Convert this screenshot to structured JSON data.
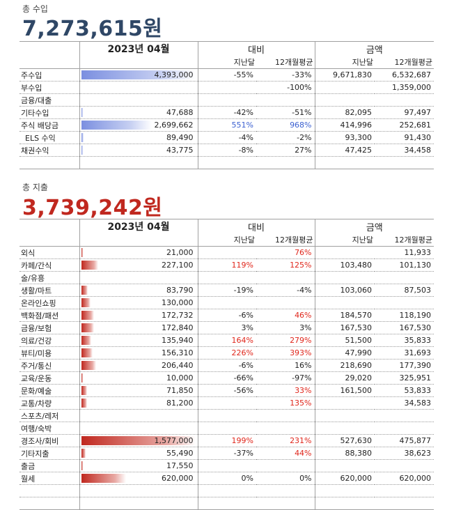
{
  "income": {
    "label": "총 수입",
    "total": "7,273,615원",
    "bar_color": "#7b8fe0",
    "header": {
      "period": "2023년 04월",
      "compare": "대비",
      "amount": "금액",
      "prev_month": "지난달",
      "avg12": "12개월평균",
      "prev_month2": "지난달",
      "avg12_2": "12개월평균"
    },
    "rows": [
      {
        "cat": "주수입",
        "value": "4,393,000",
        "bar": 1.0,
        "cmp_prev": "-55%",
        "cmp_avg": "-33%",
        "amt_prev": "9,671,830",
        "amt_avg": "6,532,687",
        "cmp_prev_color": "",
        "cmp_avg_color": ""
      },
      {
        "cat": "부수입",
        "value": "",
        "bar": 0,
        "cmp_prev": "",
        "cmp_avg": "-100%",
        "amt_prev": "",
        "amt_avg": "1,359,000",
        "cmp_prev_color": "",
        "cmp_avg_color": ""
      },
      {
        "cat": "금융/대출",
        "value": "",
        "bar": 0,
        "cmp_prev": "",
        "cmp_avg": "",
        "amt_prev": "",
        "amt_avg": "",
        "cmp_prev_color": "",
        "cmp_avg_color": ""
      },
      {
        "cat": "기타수입",
        "value": "47,688",
        "bar": 0.011,
        "cmp_prev": "-42%",
        "cmp_avg": "-51%",
        "amt_prev": "82,095",
        "amt_avg": "97,497",
        "cmp_prev_color": "",
        "cmp_avg_color": ""
      },
      {
        "cat": "주식 배당금",
        "value": "2,699,662",
        "bar": 0.615,
        "cmp_prev": "551%",
        "cmp_avg": "968%",
        "amt_prev": "414,996",
        "amt_avg": "252,681",
        "cmp_prev_color": "blue",
        "cmp_avg_color": "blue"
      },
      {
        "cat": "ELS 수익",
        "value": "89,490",
        "bar": 0.02,
        "cmp_prev": "-4%",
        "cmp_avg": "-2%",
        "amt_prev": "93,300",
        "amt_avg": "91,430",
        "cmp_prev_color": "",
        "cmp_avg_color": "",
        "indent": true
      },
      {
        "cat": "채권수익",
        "value": "43,775",
        "bar": 0.01,
        "cmp_prev": "-8%",
        "cmp_avg": "27%",
        "amt_prev": "47,425",
        "amt_avg": "34,458",
        "cmp_prev_color": "",
        "cmp_avg_color": ""
      },
      {
        "cat": "",
        "value": "",
        "bar": 0,
        "cmp_prev": "",
        "cmp_avg": "",
        "amt_prev": "",
        "amt_avg": "",
        "cmp_prev_color": "",
        "cmp_avg_color": ""
      }
    ]
  },
  "expense": {
    "label": "총 지출",
    "total": "3,739,242원",
    "bar_color": "#c0281f",
    "header": {
      "period": "2023년 04월",
      "compare": "대비",
      "amount": "금액",
      "prev_month": "지난달",
      "avg12": "12개월평균",
      "prev_month2": "지난달",
      "avg12_2": "12개월평균"
    },
    "rows": [
      {
        "cat": "외식",
        "value": "21,000",
        "bar": 0.013,
        "cmp_prev": "",
        "cmp_avg": "76%",
        "amt_prev": "",
        "amt_avg": "11,933",
        "cmp_prev_color": "",
        "cmp_avg_color": "red"
      },
      {
        "cat": "카페/간식",
        "value": "227,100",
        "bar": 0.144,
        "cmp_prev": "119%",
        "cmp_avg": "125%",
        "amt_prev": "103,480",
        "amt_avg": "101,130",
        "cmp_prev_color": "red",
        "cmp_avg_color": "red"
      },
      {
        "cat": "술/유흥",
        "value": "",
        "bar": 0,
        "cmp_prev": "",
        "cmp_avg": "",
        "amt_prev": "",
        "amt_avg": "",
        "cmp_prev_color": "",
        "cmp_avg_color": ""
      },
      {
        "cat": "생활/마트",
        "value": "83,790",
        "bar": 0.053,
        "cmp_prev": "-19%",
        "cmp_avg": "-4%",
        "amt_prev": "103,060",
        "amt_avg": "87,503",
        "cmp_prev_color": "",
        "cmp_avg_color": ""
      },
      {
        "cat": "온라인쇼핑",
        "value": "130,000",
        "bar": 0.082,
        "cmp_prev": "",
        "cmp_avg": "",
        "amt_prev": "",
        "amt_avg": "",
        "cmp_prev_color": "",
        "cmp_avg_color": ""
      },
      {
        "cat": "백화점/패션",
        "value": "172,732",
        "bar": 0.11,
        "cmp_prev": "-6%",
        "cmp_avg": "46%",
        "amt_prev": "184,570",
        "amt_avg": "118,190",
        "cmp_prev_color": "",
        "cmp_avg_color": "red"
      },
      {
        "cat": "금융/보험",
        "value": "172,840",
        "bar": 0.11,
        "cmp_prev": "3%",
        "cmp_avg": "3%",
        "amt_prev": "167,530",
        "amt_avg": "167,530",
        "cmp_prev_color": "",
        "cmp_avg_color": ""
      },
      {
        "cat": "의료/건강",
        "value": "135,940",
        "bar": 0.086,
        "cmp_prev": "164%",
        "cmp_avg": "279%",
        "amt_prev": "51,500",
        "amt_avg": "35,833",
        "cmp_prev_color": "red",
        "cmp_avg_color": "red"
      },
      {
        "cat": "뷰티/미용",
        "value": "156,310",
        "bar": 0.099,
        "cmp_prev": "226%",
        "cmp_avg": "393%",
        "amt_prev": "47,990",
        "amt_avg": "31,693",
        "cmp_prev_color": "red",
        "cmp_avg_color": "red"
      },
      {
        "cat": "주거/통신",
        "value": "206,440",
        "bar": 0.131,
        "cmp_prev": "-6%",
        "cmp_avg": "16%",
        "amt_prev": "218,690",
        "amt_avg": "177,390",
        "cmp_prev_color": "",
        "cmp_avg_color": ""
      },
      {
        "cat": "교육/운동",
        "value": "10,000",
        "bar": 0.006,
        "cmp_prev": "-66%",
        "cmp_avg": "-97%",
        "amt_prev": "29,020",
        "amt_avg": "325,951",
        "cmp_prev_color": "",
        "cmp_avg_color": ""
      },
      {
        "cat": "문화/예술",
        "value": "71,850",
        "bar": 0.046,
        "cmp_prev": "-56%",
        "cmp_avg": "33%",
        "amt_prev": "161,500",
        "amt_avg": "53,833",
        "cmp_prev_color": "",
        "cmp_avg_color": "red"
      },
      {
        "cat": "교통/차량",
        "value": "81,200",
        "bar": 0.051,
        "cmp_prev": "",
        "cmp_avg": "135%",
        "amt_prev": "",
        "amt_avg": "34,583",
        "cmp_prev_color": "",
        "cmp_avg_color": "red"
      },
      {
        "cat": "스포츠/레저",
        "value": "",
        "bar": 0,
        "cmp_prev": "",
        "cmp_avg": "",
        "amt_prev": "",
        "amt_avg": "",
        "cmp_prev_color": "",
        "cmp_avg_color": ""
      },
      {
        "cat": "여행/숙박",
        "value": "",
        "bar": 0,
        "cmp_prev": "",
        "cmp_avg": "",
        "amt_prev": "",
        "amt_avg": "",
        "cmp_prev_color": "",
        "cmp_avg_color": ""
      },
      {
        "cat": "경조사/회비",
        "value": "1,577,000",
        "bar": 1.0,
        "cmp_prev": "199%",
        "cmp_avg": "231%",
        "amt_prev": "527,630",
        "amt_avg": "475,877",
        "cmp_prev_color": "red",
        "cmp_avg_color": "red"
      },
      {
        "cat": "기타지출",
        "value": "55,490",
        "bar": 0.035,
        "cmp_prev": "-37%",
        "cmp_avg": "44%",
        "amt_prev": "88,380",
        "amt_avg": "38,623",
        "cmp_prev_color": "",
        "cmp_avg_color": "red"
      },
      {
        "cat": "출금",
        "value": "17,550",
        "bar": 0.011,
        "cmp_prev": "",
        "cmp_avg": "",
        "amt_prev": "",
        "amt_avg": "",
        "cmp_prev_color": "",
        "cmp_avg_color": ""
      },
      {
        "cat": "월세",
        "value": "620,000",
        "bar": 0.393,
        "cmp_prev": "0%",
        "cmp_avg": "0%",
        "amt_prev": "620,000",
        "amt_avg": "620,000",
        "cmp_prev_color": "",
        "cmp_avg_color": ""
      },
      {
        "cat": "",
        "value": "",
        "bar": 0,
        "cmp_prev": "",
        "cmp_avg": "",
        "amt_prev": "",
        "amt_avg": "",
        "cmp_prev_color": "",
        "cmp_avg_color": ""
      },
      {
        "cat": "",
        "value": "",
        "bar": 0,
        "cmp_prev": "",
        "cmp_avg": "",
        "amt_prev": "",
        "amt_avg": "",
        "cmp_prev_color": "",
        "cmp_avg_color": ""
      }
    ]
  }
}
